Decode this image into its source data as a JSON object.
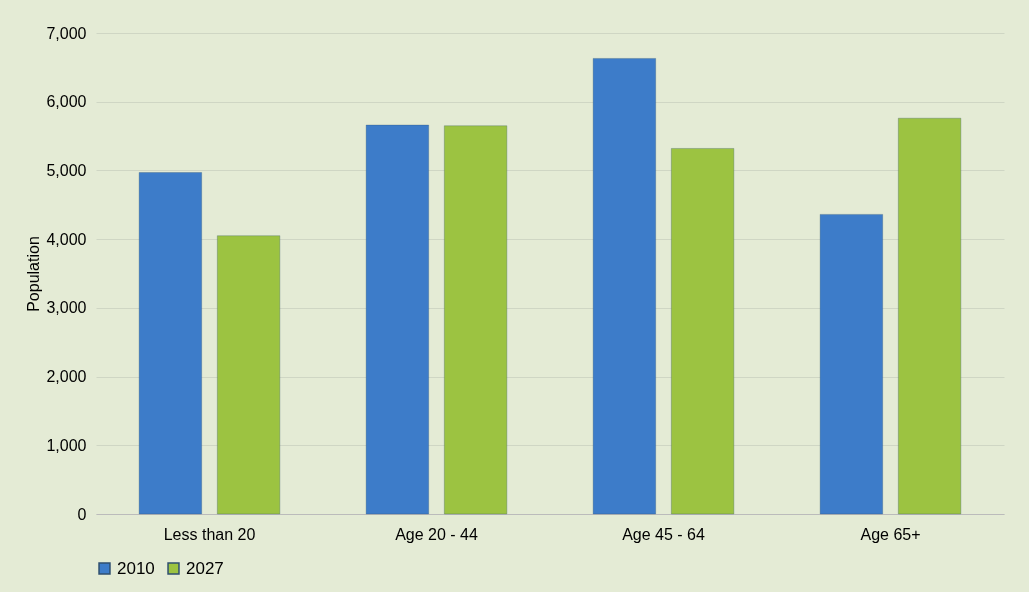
{
  "chart_data": {
    "type": "bar",
    "ylabel": "Population",
    "categories": [
      "Less than 20",
      "Age 20 - 44",
      "Age 45 - 64",
      "Age 65+"
    ],
    "series": [
      {
        "name": "2010",
        "color": "#3d7cc9",
        "values": [
          4970,
          5660,
          6630,
          4360
        ]
      },
      {
        "name": "2027",
        "color": "#9cc341",
        "values": [
          4050,
          5650,
          5320,
          5760
        ]
      }
    ],
    "ylim": [
      0,
      7000
    ],
    "yticks": [
      {
        "value": 0,
        "label": "0"
      },
      {
        "value": 1000,
        "label": "1,000"
      },
      {
        "value": 2000,
        "label": "2,000"
      },
      {
        "value": 3000,
        "label": "3,000"
      },
      {
        "value": 4000,
        "label": "4,000"
      },
      {
        "value": 5000,
        "label": "5,000"
      },
      {
        "value": 6000,
        "label": "6,000"
      },
      {
        "value": 7000,
        "label": "7,000"
      }
    ],
    "grid": "y",
    "legend": "bottom"
  }
}
